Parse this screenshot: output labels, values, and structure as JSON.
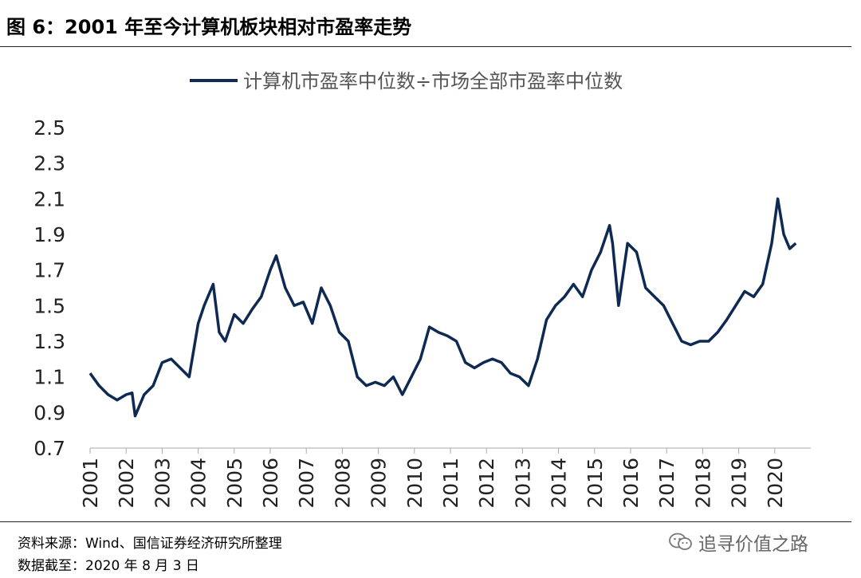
{
  "figure": {
    "title": "图 6：2001 年至今计算机板块相对市盈率走势",
    "source": "资料来源：Wind、国信证券经济研究所整理",
    "data_cutoff": "数据截至：2020 年 8 月 3 日",
    "watermark": "追寻价值之路",
    "watermark_icon": "wechat-icon"
  },
  "chart_data": {
    "type": "line",
    "title": "",
    "xlabel": "",
    "ylabel": "",
    "ylim": [
      0.7,
      2.5
    ],
    "yticks": [
      "0.7",
      "0.9",
      "1.1",
      "1.3",
      "1.5",
      "1.7",
      "1.9",
      "2.1",
      "2.3",
      "2.5"
    ],
    "xticks": [
      "2001",
      "2002",
      "2003",
      "2004",
      "2005",
      "2006",
      "2007",
      "2008",
      "2009",
      "2010",
      "2011",
      "2012",
      "2013",
      "2014",
      "2015",
      "2016",
      "2017",
      "2018",
      "2019",
      "2020"
    ],
    "grid": false,
    "legend_position": "top-center",
    "color": "#0e2a52",
    "series": [
      {
        "name": "计算机市盈率中位数÷市场全部市盈率中位数",
        "x": [
          "2001-01",
          "2001-04",
          "2001-07",
          "2001-10",
          "2002-01",
          "2002-03",
          "2002-04",
          "2002-07",
          "2002-10",
          "2003-01",
          "2003-04",
          "2003-07",
          "2003-10",
          "2004-01",
          "2004-03",
          "2004-06",
          "2004-08",
          "2004-10",
          "2005-01",
          "2005-04",
          "2005-07",
          "2005-10",
          "2006-01",
          "2006-03",
          "2006-06",
          "2006-09",
          "2006-12",
          "2007-03",
          "2007-06",
          "2007-09",
          "2007-12",
          "2008-03",
          "2008-06",
          "2008-09",
          "2008-12",
          "2009-03",
          "2009-06",
          "2009-09",
          "2009-12",
          "2010-03",
          "2010-06",
          "2010-09",
          "2010-12",
          "2011-03",
          "2011-06",
          "2011-09",
          "2011-12",
          "2012-03",
          "2012-06",
          "2012-09",
          "2012-12",
          "2013-03",
          "2013-06",
          "2013-09",
          "2013-12",
          "2014-03",
          "2014-06",
          "2014-09",
          "2014-12",
          "2015-03",
          "2015-06",
          "2015-07",
          "2015-09",
          "2015-12",
          "2016-03",
          "2016-06",
          "2016-09",
          "2016-12",
          "2017-03",
          "2017-06",
          "2017-09",
          "2017-12",
          "2018-03",
          "2018-06",
          "2018-09",
          "2018-12",
          "2019-03",
          "2019-06",
          "2019-09",
          "2019-12",
          "2020-02",
          "2020-04",
          "2020-06",
          "2020-08"
        ],
        "values": [
          1.12,
          1.05,
          1.0,
          0.97,
          1.0,
          1.01,
          0.88,
          1.0,
          1.05,
          1.18,
          1.2,
          1.15,
          1.1,
          1.4,
          1.5,
          1.62,
          1.35,
          1.3,
          1.45,
          1.4,
          1.48,
          1.55,
          1.7,
          1.78,
          1.6,
          1.5,
          1.52,
          1.4,
          1.6,
          1.5,
          1.35,
          1.3,
          1.1,
          1.05,
          1.07,
          1.05,
          1.1,
          1.0,
          1.1,
          1.2,
          1.38,
          1.35,
          1.33,
          1.3,
          1.18,
          1.15,
          1.18,
          1.2,
          1.18,
          1.12,
          1.1,
          1.05,
          1.2,
          1.42,
          1.5,
          1.55,
          1.62,
          1.55,
          1.7,
          1.8,
          1.95,
          1.85,
          1.5,
          1.85,
          1.8,
          1.6,
          1.55,
          1.5,
          1.4,
          1.3,
          1.28,
          1.3,
          1.3,
          1.35,
          1.42,
          1.5,
          1.58,
          1.55,
          1.62,
          1.85,
          2.1,
          1.9,
          1.82,
          1.85
        ]
      }
    ]
  }
}
